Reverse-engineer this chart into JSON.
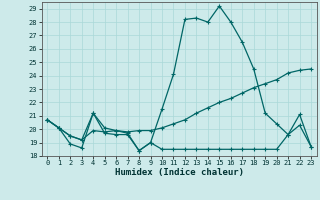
{
  "xlabel": "Humidex (Indice chaleur)",
  "xlim": [
    -0.5,
    23.5
  ],
  "ylim": [
    18,
    29.5
  ],
  "yticks": [
    18,
    19,
    20,
    21,
    22,
    23,
    24,
    25,
    26,
    27,
    28,
    29
  ],
  "xticks": [
    0,
    1,
    2,
    3,
    4,
    5,
    6,
    7,
    8,
    9,
    10,
    11,
    12,
    13,
    14,
    15,
    16,
    17,
    18,
    19,
    20,
    21,
    22,
    23
  ],
  "bg_color": "#cdeaea",
  "grid_color": "#aad8d8",
  "line_color": "#006666",
  "line1_x": [
    0,
    1,
    2,
    3,
    4,
    5,
    6,
    7,
    8,
    9,
    10,
    11,
    12,
    13,
    14,
    15,
    16,
    17,
    18,
    19,
    20,
    21,
    22,
    23
  ],
  "line1_y": [
    20.7,
    20.1,
    18.9,
    18.6,
    21.2,
    19.7,
    19.6,
    19.6,
    18.4,
    19.0,
    18.5,
    18.5,
    18.5,
    18.5,
    18.5,
    18.5,
    18.5,
    18.5,
    18.5,
    18.5,
    18.5,
    19.6,
    20.3,
    18.7
  ],
  "line2_x": [
    0,
    1,
    2,
    3,
    4,
    5,
    6,
    7,
    8,
    9,
    10,
    11,
    12,
    13,
    14,
    15,
    16,
    17,
    18,
    19,
    20,
    21,
    22,
    23
  ],
  "line2_y": [
    20.7,
    20.1,
    19.5,
    19.2,
    19.9,
    19.8,
    19.9,
    19.8,
    19.9,
    19.9,
    20.1,
    20.4,
    20.7,
    21.2,
    21.6,
    22.0,
    22.3,
    22.7,
    23.1,
    23.4,
    23.7,
    24.2,
    24.4,
    24.5
  ],
  "line3_x": [
    0,
    1,
    2,
    3,
    4,
    5,
    6,
    7,
    8,
    9,
    10,
    11,
    12,
    13,
    14,
    15,
    16,
    17,
    18,
    19,
    20,
    21,
    22,
    23
  ],
  "line3_y": [
    20.7,
    20.1,
    19.5,
    19.2,
    21.2,
    20.1,
    19.9,
    19.7,
    18.4,
    19.0,
    21.5,
    24.1,
    28.2,
    28.3,
    28.0,
    29.2,
    28.0,
    26.5,
    24.5,
    21.2,
    20.4,
    19.6,
    21.1,
    18.7
  ]
}
